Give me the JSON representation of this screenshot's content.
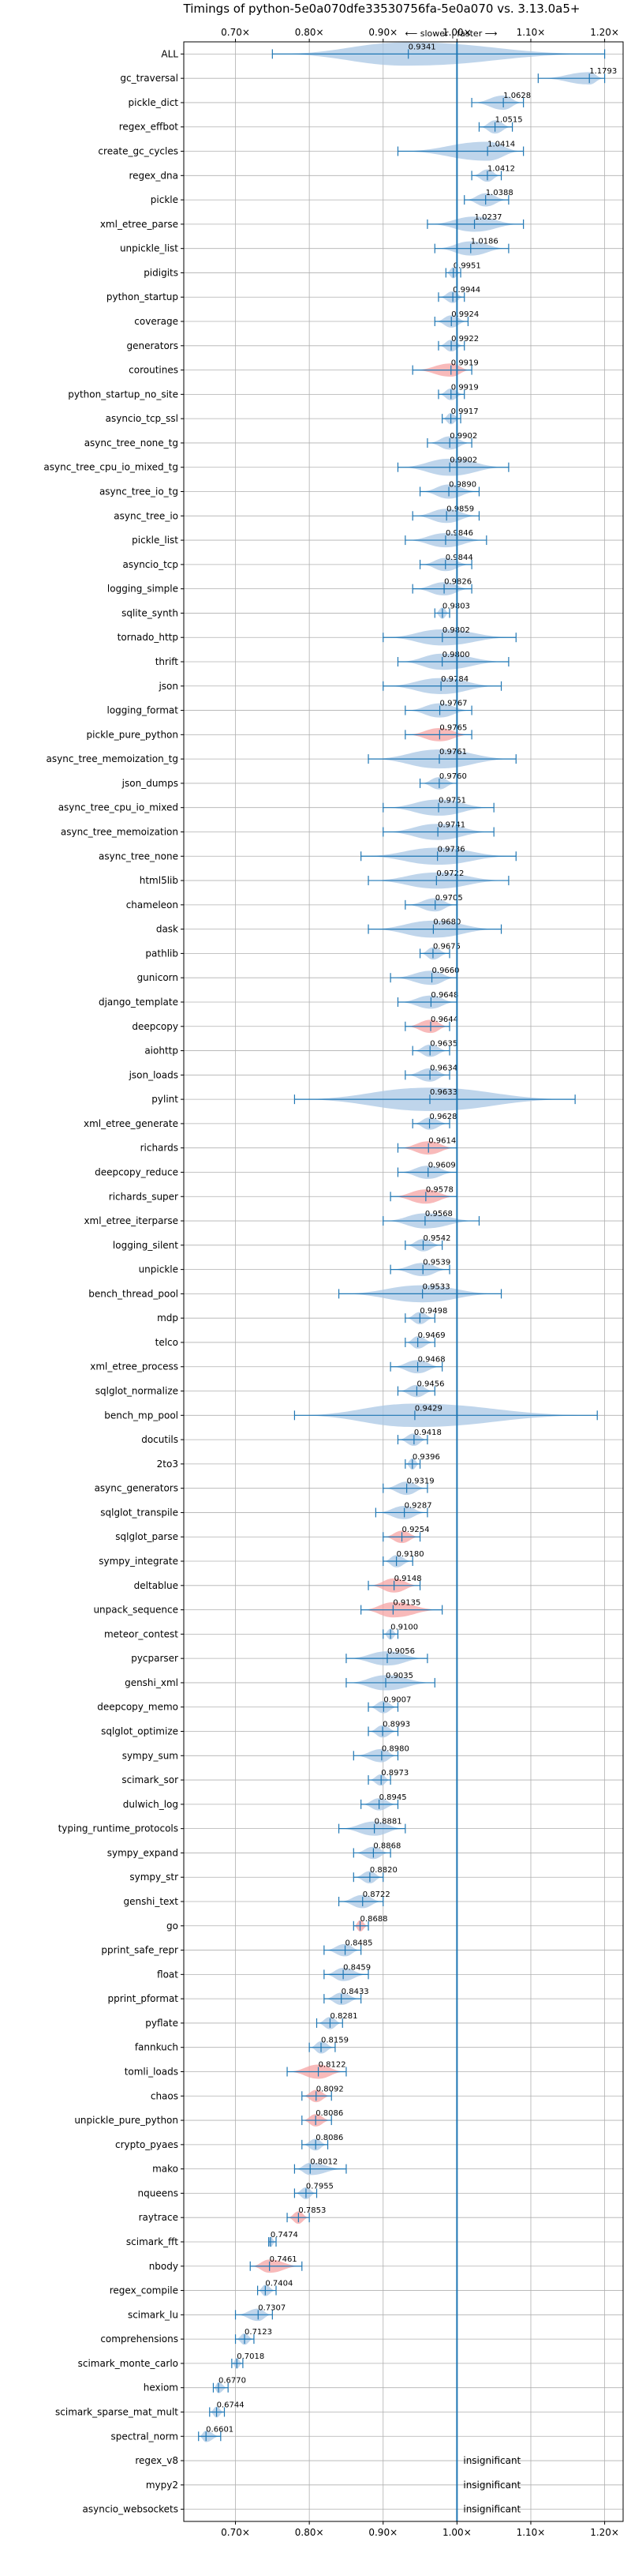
{
  "chart_data": {
    "type": "violin",
    "title": "Timings of python-5e0a070dfe33530756fa-5e0a070 vs. 3.13.0a5+",
    "direction_label": "⟵ slower | faster ⟶",
    "x_ticks": [
      "0.70×",
      "0.80×",
      "0.90×",
      "1.00×",
      "1.10×",
      "1.20×"
    ],
    "x_tick_values": [
      0.7,
      0.8,
      0.9,
      1.0,
      1.1,
      1.2
    ],
    "xlim": [
      0.63,
      1.225
    ],
    "reference_line": 1.0,
    "grid": true,
    "colors": {
      "normal": "#a9c7e4",
      "highlight": "#f5a3a3",
      "line": "#1f77b4",
      "reference": "#1f77b4"
    },
    "insignificant_label": "insignificant",
    "benchmarks": [
      {
        "name": "ALL",
        "median": 0.9341,
        "min": 0.75,
        "max": 1.2,
        "width": 0.45,
        "label": "0.9341"
      },
      {
        "name": "gc_traversal",
        "median": 1.1793,
        "min": 1.11,
        "max": 1.2,
        "width": 0.03,
        "label": "1.1793"
      },
      {
        "name": "pickle_dict",
        "median": 1.0628,
        "min": 1.02,
        "max": 1.09,
        "width": 0.05,
        "label": "1.0628"
      },
      {
        "name": "regex_effbot",
        "median": 1.0515,
        "min": 1.03,
        "max": 1.075,
        "width": 0.04,
        "label": "1.0515"
      },
      {
        "name": "create_gc_cycles",
        "median": 1.0414,
        "min": 0.92,
        "max": 1.09,
        "width": 0.1,
        "label": "1.0414"
      },
      {
        "name": "regex_dna",
        "median": 1.0412,
        "min": 1.02,
        "max": 1.06,
        "width": 0.03,
        "label": "1.0412"
      },
      {
        "name": "pickle",
        "median": 1.0388,
        "min": 1.01,
        "max": 1.07,
        "width": 0.04,
        "label": "1.0388"
      },
      {
        "name": "xml_etree_parse",
        "median": 1.0237,
        "min": 0.96,
        "max": 1.09,
        "width": 0.06,
        "label": "1.0237"
      },
      {
        "name": "unpickle_list",
        "median": 1.0186,
        "min": 0.97,
        "max": 1.07,
        "width": 0.05,
        "label": "1.0186"
      },
      {
        "name": "pidigits",
        "median": 0.9951,
        "min": 0.985,
        "max": 1.005,
        "width": 0.015,
        "label": "0.9951"
      },
      {
        "name": "python_startup",
        "median": 0.9944,
        "min": 0.975,
        "max": 1.01,
        "width": 0.025,
        "label": "0.9944"
      },
      {
        "name": "coverage",
        "median": 0.9924,
        "min": 0.97,
        "max": 1.015,
        "width": 0.03,
        "label": "0.9924"
      },
      {
        "name": "generators",
        "median": 0.9922,
        "min": 0.975,
        "max": 1.01,
        "width": 0.025,
        "label": "0.9922"
      },
      {
        "name": "coroutines",
        "median": 0.9919,
        "min": 0.94,
        "max": 1.02,
        "width": 0.04,
        "label": "0.9919",
        "highlight": true
      },
      {
        "name": "python_startup_no_site",
        "median": 0.9919,
        "min": 0.975,
        "max": 1.01,
        "width": 0.025,
        "label": "0.9919"
      },
      {
        "name": "asyncio_tcp_ssl",
        "median": 0.9917,
        "min": 0.98,
        "max": 1.005,
        "width": 0.02,
        "label": "0.9917"
      },
      {
        "name": "async_tree_none_tg",
        "median": 0.9902,
        "min": 0.96,
        "max": 1.02,
        "width": 0.04,
        "label": "0.9902"
      },
      {
        "name": "async_tree_cpu_io_mixed_tg",
        "median": 0.9902,
        "min": 0.92,
        "max": 1.07,
        "width": 0.08,
        "label": "0.9902"
      },
      {
        "name": "async_tree_io_tg",
        "median": 0.989,
        "min": 0.95,
        "max": 1.03,
        "width": 0.05,
        "label": "0.9890"
      },
      {
        "name": "async_tree_io",
        "median": 0.9859,
        "min": 0.94,
        "max": 1.03,
        "width": 0.05,
        "label": "0.9859"
      },
      {
        "name": "pickle_list",
        "median": 0.9846,
        "min": 0.93,
        "max": 1.04,
        "width": 0.05,
        "label": "0.9846"
      },
      {
        "name": "asyncio_tcp",
        "median": 0.9844,
        "min": 0.95,
        "max": 1.02,
        "width": 0.04,
        "label": "0.9844"
      },
      {
        "name": "logging_simple",
        "median": 0.9826,
        "min": 0.94,
        "max": 1.02,
        "width": 0.04,
        "label": "0.9826"
      },
      {
        "name": "sqlite_synth",
        "median": 0.9803,
        "min": 0.97,
        "max": 0.99,
        "width": 0.02,
        "label": "0.9803"
      },
      {
        "name": "tornado_http",
        "median": 0.9802,
        "min": 0.9,
        "max": 1.08,
        "width": 0.07,
        "label": "0.9802"
      },
      {
        "name": "thrift",
        "median": 0.98,
        "min": 0.92,
        "max": 1.07,
        "width": 0.07,
        "label": "0.9800"
      },
      {
        "name": "json",
        "median": 0.9784,
        "min": 0.9,
        "max": 1.06,
        "width": 0.07,
        "label": "0.9784"
      },
      {
        "name": "logging_format",
        "median": 0.9767,
        "min": 0.93,
        "max": 1.02,
        "width": 0.05,
        "label": "0.9767"
      },
      {
        "name": "pickle_pure_python",
        "median": 0.9765,
        "min": 0.93,
        "max": 1.02,
        "width": 0.04,
        "label": "0.9765",
        "highlight": true
      },
      {
        "name": "async_tree_memoization_tg",
        "median": 0.9761,
        "min": 0.88,
        "max": 1.08,
        "width": 0.1,
        "label": "0.9761"
      },
      {
        "name": "json_dumps",
        "median": 0.976,
        "min": 0.95,
        "max": 1.0,
        "width": 0.03,
        "label": "0.9760"
      },
      {
        "name": "async_tree_cpu_io_mixed",
        "median": 0.9751,
        "min": 0.9,
        "max": 1.05,
        "width": 0.07,
        "label": "0.9751"
      },
      {
        "name": "async_tree_memoization",
        "median": 0.9741,
        "min": 0.9,
        "max": 1.05,
        "width": 0.07,
        "label": "0.9741"
      },
      {
        "name": "async_tree_none",
        "median": 0.9736,
        "min": 0.87,
        "max": 1.08,
        "width": 0.08,
        "label": "0.9736"
      },
      {
        "name": "html5lib",
        "median": 0.9722,
        "min": 0.88,
        "max": 1.07,
        "width": 0.07,
        "label": "0.9722"
      },
      {
        "name": "chameleon",
        "median": 0.9705,
        "min": 0.93,
        "max": 1.0,
        "width": 0.04,
        "label": "0.9705"
      },
      {
        "name": "dask",
        "median": 0.968,
        "min": 0.88,
        "max": 1.06,
        "width": 0.08,
        "label": "0.9680"
      },
      {
        "name": "pathlib",
        "median": 0.9675,
        "min": 0.95,
        "max": 0.99,
        "width": 0.03,
        "label": "0.9675"
      },
      {
        "name": "gunicorn",
        "median": 0.966,
        "min": 0.91,
        "max": 1.0,
        "width": 0.05,
        "label": "0.9660"
      },
      {
        "name": "django_template",
        "median": 0.9648,
        "min": 0.92,
        "max": 1.0,
        "width": 0.04,
        "label": "0.9648"
      },
      {
        "name": "deepcopy",
        "median": 0.9644,
        "min": 0.93,
        "max": 0.99,
        "width": 0.04,
        "label": "0.9644",
        "highlight": true
      },
      {
        "name": "aiohttp",
        "median": 0.9635,
        "min": 0.94,
        "max": 0.99,
        "width": 0.03,
        "label": "0.9635"
      },
      {
        "name": "json_loads",
        "median": 0.9634,
        "min": 0.93,
        "max": 0.99,
        "width": 0.04,
        "label": "0.9634"
      },
      {
        "name": "pylint",
        "median": 0.9633,
        "min": 0.78,
        "max": 1.16,
        "width": 0.2,
        "label": "0.9633"
      },
      {
        "name": "xml_etree_generate",
        "median": 0.9628,
        "min": 0.94,
        "max": 0.99,
        "width": 0.03,
        "label": "0.9628"
      },
      {
        "name": "richards",
        "median": 0.9614,
        "min": 0.92,
        "max": 1.0,
        "width": 0.04,
        "label": "0.9614",
        "highlight": true
      },
      {
        "name": "deepcopy_reduce",
        "median": 0.9609,
        "min": 0.92,
        "max": 1.0,
        "width": 0.04,
        "label": "0.9609"
      },
      {
        "name": "richards_super",
        "median": 0.9578,
        "min": 0.91,
        "max": 1.0,
        "width": 0.05,
        "label": "0.9578",
        "highlight": true
      },
      {
        "name": "xml_etree_iterparse",
        "median": 0.9568,
        "min": 0.9,
        "max": 1.03,
        "width": 0.06,
        "label": "0.9568"
      },
      {
        "name": "logging_silent",
        "median": 0.9542,
        "min": 0.93,
        "max": 0.98,
        "width": 0.03,
        "label": "0.9542"
      },
      {
        "name": "unpickle",
        "median": 0.9539,
        "min": 0.91,
        "max": 0.99,
        "width": 0.04,
        "label": "0.9539"
      },
      {
        "name": "bench_thread_pool",
        "median": 0.9533,
        "min": 0.84,
        "max": 1.06,
        "width": 0.08,
        "label": "0.9533"
      },
      {
        "name": "mdp",
        "median": 0.9498,
        "min": 0.93,
        "max": 0.97,
        "width": 0.03,
        "label": "0.9498"
      },
      {
        "name": "telco",
        "median": 0.9469,
        "min": 0.93,
        "max": 0.97,
        "width": 0.03,
        "label": "0.9469"
      },
      {
        "name": "xml_etree_process",
        "median": 0.9468,
        "min": 0.91,
        "max": 0.98,
        "width": 0.04,
        "label": "0.9468"
      },
      {
        "name": "sqlglot_normalize",
        "median": 0.9456,
        "min": 0.92,
        "max": 0.97,
        "width": 0.03,
        "label": "0.9456"
      },
      {
        "name": "bench_mp_pool",
        "median": 0.9429,
        "min": 0.78,
        "max": 1.19,
        "width": 0.2,
        "label": "0.9429"
      },
      {
        "name": "docutils",
        "median": 0.9418,
        "min": 0.92,
        "max": 0.96,
        "width": 0.03,
        "label": "0.9418"
      },
      {
        "name": "2to3",
        "median": 0.9396,
        "min": 0.93,
        "max": 0.95,
        "width": 0.02,
        "label": "0.9396"
      },
      {
        "name": "async_generators",
        "median": 0.9319,
        "min": 0.9,
        "max": 0.96,
        "width": 0.04,
        "label": "0.9319"
      },
      {
        "name": "sqlglot_transpile",
        "median": 0.9287,
        "min": 0.89,
        "max": 0.96,
        "width": 0.04,
        "label": "0.9287"
      },
      {
        "name": "sqlglot_parse",
        "median": 0.9254,
        "min": 0.9,
        "max": 0.95,
        "width": 0.03,
        "label": "0.9254",
        "highlight": true
      },
      {
        "name": "sympy_integrate",
        "median": 0.918,
        "min": 0.9,
        "max": 0.94,
        "width": 0.03,
        "label": "0.9180"
      },
      {
        "name": "deltablue",
        "median": 0.9148,
        "min": 0.88,
        "max": 0.95,
        "width": 0.05,
        "label": "0.9148",
        "highlight": true
      },
      {
        "name": "unpack_sequence",
        "median": 0.9135,
        "min": 0.87,
        "max": 0.98,
        "width": 0.06,
        "label": "0.9135",
        "highlight": true
      },
      {
        "name": "meteor_contest",
        "median": 0.91,
        "min": 0.9,
        "max": 0.92,
        "width": 0.015,
        "label": "0.9100"
      },
      {
        "name": "pycparser",
        "median": 0.9056,
        "min": 0.85,
        "max": 0.96,
        "width": 0.05,
        "label": "0.9056"
      },
      {
        "name": "genshi_xml",
        "median": 0.9035,
        "min": 0.85,
        "max": 0.97,
        "width": 0.06,
        "label": "0.9035"
      },
      {
        "name": "deepcopy_memo",
        "median": 0.9007,
        "min": 0.88,
        "max": 0.92,
        "width": 0.03,
        "label": "0.9007"
      },
      {
        "name": "sqlglot_optimize",
        "median": 0.8993,
        "min": 0.88,
        "max": 0.92,
        "width": 0.03,
        "label": "0.8993"
      },
      {
        "name": "sympy_sum",
        "median": 0.898,
        "min": 0.86,
        "max": 0.92,
        "width": 0.04,
        "label": "0.8980"
      },
      {
        "name": "scimark_sor",
        "median": 0.8973,
        "min": 0.88,
        "max": 0.91,
        "width": 0.02,
        "label": "0.8973"
      },
      {
        "name": "dulwich_log",
        "median": 0.8945,
        "min": 0.87,
        "max": 0.92,
        "width": 0.03,
        "label": "0.8945"
      },
      {
        "name": "typing_runtime_protocols",
        "median": 0.8881,
        "min": 0.84,
        "max": 0.93,
        "width": 0.05,
        "label": "0.8881"
      },
      {
        "name": "sympy_expand",
        "median": 0.8868,
        "min": 0.86,
        "max": 0.91,
        "width": 0.03,
        "label": "0.8868"
      },
      {
        "name": "sympy_str",
        "median": 0.882,
        "min": 0.86,
        "max": 0.9,
        "width": 0.03,
        "label": "0.8820"
      },
      {
        "name": "genshi_text",
        "median": 0.8722,
        "min": 0.84,
        "max": 0.9,
        "width": 0.04,
        "label": "0.8722"
      },
      {
        "name": "go",
        "median": 0.8688,
        "min": 0.86,
        "max": 0.88,
        "width": 0.02,
        "label": "0.8688",
        "highlight": true
      },
      {
        "name": "pprint_safe_repr",
        "median": 0.8485,
        "min": 0.82,
        "max": 0.87,
        "width": 0.03,
        "label": "0.8485"
      },
      {
        "name": "float",
        "median": 0.8459,
        "min": 0.82,
        "max": 0.88,
        "width": 0.04,
        "label": "0.8459"
      },
      {
        "name": "pprint_pformat",
        "median": 0.8433,
        "min": 0.82,
        "max": 0.87,
        "width": 0.03,
        "label": "0.8433"
      },
      {
        "name": "pyflate",
        "median": 0.8281,
        "min": 0.81,
        "max": 0.845,
        "width": 0.03,
        "label": "0.8281"
      },
      {
        "name": "fannkuch",
        "median": 0.8159,
        "min": 0.8,
        "max": 0.835,
        "width": 0.03,
        "label": "0.8159"
      },
      {
        "name": "tomli_loads",
        "median": 0.8122,
        "min": 0.77,
        "max": 0.85,
        "width": 0.05,
        "label": "0.8122",
        "highlight": true
      },
      {
        "name": "chaos",
        "median": 0.8092,
        "min": 0.79,
        "max": 0.83,
        "width": 0.03,
        "label": "0.8092",
        "highlight": true
      },
      {
        "name": "unpickle_pure_python",
        "median": 0.8086,
        "min": 0.79,
        "max": 0.83,
        "width": 0.03,
        "label": "0.8086",
        "highlight": true
      },
      {
        "name": "crypto_pyaes",
        "median": 0.8086,
        "min": 0.79,
        "max": 0.825,
        "width": 0.025,
        "label": "0.8086"
      },
      {
        "name": "mako",
        "median": 0.8012,
        "min": 0.78,
        "max": 0.85,
        "width": 0.03,
        "label": "0.8012"
      },
      {
        "name": "nqueens",
        "median": 0.7955,
        "min": 0.78,
        "max": 0.81,
        "width": 0.025,
        "label": "0.7955"
      },
      {
        "name": "raytrace",
        "median": 0.7853,
        "min": 0.77,
        "max": 0.8,
        "width": 0.03,
        "label": "0.7853",
        "highlight": true
      },
      {
        "name": "scimark_fft",
        "median": 0.7474,
        "min": 0.745,
        "max": 0.755,
        "width": 0.01,
        "label": "0.7474"
      },
      {
        "name": "nbody",
        "median": 0.7461,
        "min": 0.72,
        "max": 0.79,
        "width": 0.04,
        "label": "0.7461",
        "highlight": true
      },
      {
        "name": "regex_compile",
        "median": 0.7404,
        "min": 0.73,
        "max": 0.755,
        "width": 0.02,
        "label": "0.7404"
      },
      {
        "name": "scimark_lu",
        "median": 0.7307,
        "min": 0.7,
        "max": 0.75,
        "width": 0.03,
        "label": "0.7307"
      },
      {
        "name": "comprehensions",
        "median": 0.7123,
        "min": 0.7,
        "max": 0.725,
        "width": 0.02,
        "label": "0.7123"
      },
      {
        "name": "scimark_monte_carlo",
        "median": 0.7018,
        "min": 0.695,
        "max": 0.71,
        "width": 0.015,
        "label": "0.7018"
      },
      {
        "name": "hexiom",
        "median": 0.677,
        "min": 0.67,
        "max": 0.69,
        "width": 0.015,
        "label": "0.6770"
      },
      {
        "name": "scimark_sparse_mat_mult",
        "median": 0.6744,
        "min": 0.665,
        "max": 0.685,
        "width": 0.015,
        "label": "0.6744"
      },
      {
        "name": "spectral_norm",
        "median": 0.6601,
        "min": 0.65,
        "max": 0.68,
        "width": 0.02,
        "label": "0.6601"
      },
      {
        "name": "regex_v8",
        "insignificant": true
      },
      {
        "name": "mypy2",
        "insignificant": true
      },
      {
        "name": "asyncio_websockets",
        "insignificant": true
      }
    ]
  }
}
